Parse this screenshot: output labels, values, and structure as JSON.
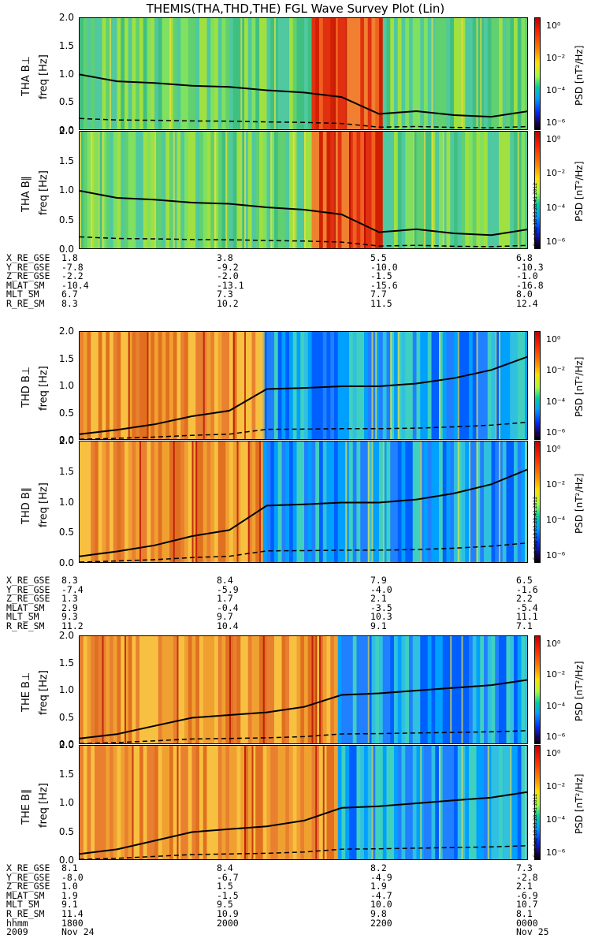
{
  "title": "THEMIS(THA,THD,THE) FGL Wave Survey Plot (Lin)",
  "colorbar": {
    "label": "PSD [nT²/Hz]",
    "ticks": [
      "10⁰",
      "10⁻²",
      "10⁻⁴",
      "10⁻⁶"
    ]
  },
  "stamp": "Sun Sep 18 03:28:41 2012",
  "yticks": [
    "2.0",
    "1.5",
    "1.0",
    "0.5",
    "0.0"
  ],
  "panels": [
    {
      "label": "THA B⊥",
      "ylabel": "freq [Hz]"
    },
    {
      "label": "THA B∥",
      "ylabel": "freq [Hz]"
    },
    {
      "label": "THD B⊥",
      "ylabel": "freq [Hz]"
    },
    {
      "label": "THD B∥",
      "ylabel": "freq [Hz]"
    },
    {
      "label": "THE B⊥",
      "ylabel": "freq [Hz]"
    },
    {
      "label": "THE B∥",
      "ylabel": "freq [Hz]"
    }
  ],
  "ephem": [
    {
      "rows": [
        [
          "X_RE_GSE",
          "1.8",
          "3.8",
          "5.5",
          "6.8"
        ],
        [
          "Y_RE_GSE",
          "-7.8",
          "-9.2",
          "-10.0",
          "-10.3"
        ],
        [
          "Z_RE_GSE",
          "-2.2",
          "-2.0",
          "-1.5",
          "-1.0"
        ],
        [
          "MLAT_SM",
          "-10.4",
          "-13.1",
          "-15.6",
          "-16.8"
        ],
        [
          "MLT_SM",
          "6.7",
          "7.3",
          "7.7",
          "8.0"
        ],
        [
          "R_RE_SM",
          "8.3",
          "10.2",
          "11.5",
          "12.4"
        ]
      ]
    },
    {
      "rows": [
        [
          "X_RE_GSE",
          "8.3",
          "8.4",
          "7.9",
          "6.5"
        ],
        [
          "Y_RE_GSE",
          "-7.4",
          "-5.9",
          "-4.0",
          "-1.6"
        ],
        [
          "Z_RE_GSE",
          "1.3",
          "1.7",
          "2.1",
          "2.2"
        ],
        [
          "MLAT_SM",
          "2.9",
          "-0.4",
          "-3.5",
          "-5.4"
        ],
        [
          "MLT_SM",
          "9.3",
          "9.7",
          "10.3",
          "11.1"
        ],
        [
          "R_RE_SM",
          "11.2",
          "10.4",
          "9.1",
          "7.1"
        ]
      ]
    },
    {
      "rows": [
        [
          "X_RE_GSE",
          "8.1",
          "8.4",
          "8.2",
          "7.3"
        ],
        [
          "Y_RE_GSE",
          "-8.0",
          "-6.7",
          "-4.9",
          "-2.8"
        ],
        [
          "Z_RE_GSE",
          "1.0",
          "1.5",
          "1.9",
          "2.1"
        ],
        [
          "MLAT_SM",
          "1.9",
          "-1.5",
          "-4.7",
          "-6.9"
        ],
        [
          "MLT_SM",
          "9.1",
          "9.5",
          "10.0",
          "10.7"
        ],
        [
          "R_RE_SM",
          "11.4",
          "10.9",
          "9.8",
          "8.1"
        ],
        [
          "hhmm",
          "1800",
          "2000",
          "2200",
          "0000"
        ],
        [
          "2009",
          "Nov 24",
          "",
          "",
          "Nov 25"
        ]
      ]
    }
  ],
  "chart_data": {
    "type": "heatmap",
    "x_axis": {
      "ticks": [
        "1800",
        "2000",
        "2200",
        "0000"
      ],
      "dates": [
        "2009 Nov 24",
        "Nov 25"
      ]
    },
    "y_axis": {
      "label": "freq [Hz]",
      "range": [
        0,
        2.0
      ]
    },
    "colorscale": {
      "label": "PSD [nT^2/Hz]",
      "log": true,
      "range_exp": [
        -6,
        1
      ]
    },
    "time_hours": [
      18.0,
      18.5,
      19.0,
      19.5,
      20.0,
      20.5,
      21.0,
      21.5,
      22.0,
      22.5,
      23.0,
      23.5,
      24.0
    ],
    "probes": [
      {
        "name": "THA",
        "fce_line_hz": [
          1.0,
          0.88,
          0.85,
          0.8,
          0.78,
          0.72,
          0.68,
          0.6,
          0.3,
          0.35,
          0.28,
          0.25,
          0.35
        ],
        "background": "green",
        "intense_band_hours": [
          21.1,
          22.0
        ]
      },
      {
        "name": "THD",
        "fce_line_hz": [
          0.12,
          0.2,
          0.3,
          0.45,
          0.55,
          0.95,
          0.97,
          1.0,
          1.0,
          1.05,
          1.15,
          1.3,
          1.55
        ],
        "background": "orange-to-blue",
        "intense_band_hours": [
          18.0,
          20.4
        ]
      },
      {
        "name": "THE",
        "fce_line_hz": [
          0.12,
          0.2,
          0.35,
          0.5,
          0.55,
          0.6,
          0.7,
          0.92,
          0.95,
          1.0,
          1.05,
          1.1,
          1.2
        ],
        "background": "orange-to-blue",
        "intense_band_hours": [
          18.0,
          21.4
        ]
      }
    ]
  }
}
